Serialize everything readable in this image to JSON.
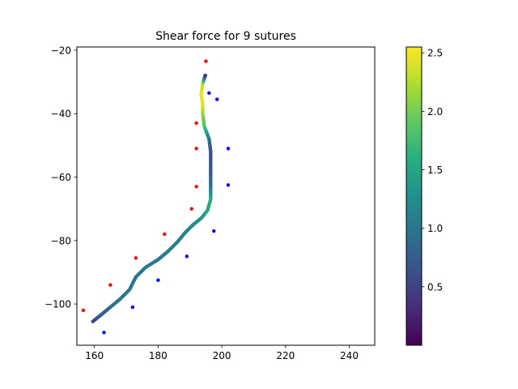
{
  "chart_data": {
    "type": "scatter",
    "title": "Shear force for 9 sutures",
    "xlabel": "",
    "ylabel": "",
    "xlim": [
      154.5,
      248
    ],
    "ylim": [
      -113,
      -19
    ],
    "x_ticks": [
      160,
      180,
      200,
      220,
      240
    ],
    "y_ticks": [
      -20,
      -40,
      -60,
      -80,
      -100
    ],
    "x_tick_labels": [
      "160",
      "180",
      "200",
      "220",
      "240"
    ],
    "y_tick_labels": [
      "−20",
      "−40",
      "−60",
      "−80",
      "−100"
    ],
    "grid": false,
    "colormap": "viridis",
    "colorbar": {
      "min": 0,
      "max": 2.55,
      "ticks": [
        0.5,
        1.0,
        1.5,
        2.0,
        2.5
      ],
      "tick_labels": [
        "0.5",
        "1.0",
        "1.5",
        "2.0",
        "2.5"
      ]
    },
    "path": {
      "points": [
        [
          159.5,
          -105.5
        ],
        [
          162,
          -103.5
        ],
        [
          165,
          -101
        ],
        [
          168,
          -98.5
        ],
        [
          171,
          -95.5
        ],
        [
          173,
          -91.5
        ],
        [
          176,
          -88.5
        ],
        [
          180,
          -86
        ],
        [
          183,
          -83.5
        ],
        [
          186,
          -80.5
        ],
        [
          188.5,
          -77.5
        ],
        [
          191,
          -75
        ],
        [
          193.5,
          -73
        ],
        [
          195.5,
          -70.5
        ],
        [
          196.5,
          -67
        ],
        [
          196.5,
          -62
        ],
        [
          196.5,
          -57
        ],
        [
          196.5,
          -52
        ],
        [
          196,
          -48
        ],
        [
          194.5,
          -44
        ],
        [
          194,
          -40
        ],
        [
          194,
          -37
        ],
        [
          193.5,
          -34
        ],
        [
          194,
          -30.5
        ],
        [
          194.8,
          -28
        ]
      ],
      "force": [
        0.5,
        0.7,
        0.9,
        1.0,
        1.05,
        1.0,
        1.05,
        1.0,
        1.05,
        1.1,
        1.15,
        1.2,
        1.3,
        1.5,
        1.6,
        0.9,
        0.7,
        0.6,
        0.9,
        1.8,
        2.1,
        2.4,
        2.5,
        2.3,
        0.5
      ]
    },
    "series": [
      {
        "color": "#ff0000",
        "points": [
          [
            156.5,
            -102
          ],
          [
            165,
            -94
          ],
          [
            173,
            -85.5
          ],
          [
            182,
            -78
          ],
          [
            190.5,
            -70
          ],
          [
            192,
            -63
          ],
          [
            192,
            -51
          ],
          [
            192,
            -43
          ],
          [
            195,
            -23.5
          ]
        ]
      },
      {
        "color": "#0000ff",
        "points": [
          [
            163,
            -109
          ],
          [
            172,
            -101
          ],
          [
            180,
            -92.5
          ],
          [
            189,
            -85
          ],
          [
            197.5,
            -77
          ],
          [
            202,
            -62.5
          ],
          [
            202,
            -51
          ],
          [
            198.5,
            -35.5
          ],
          [
            196,
            -33.5
          ]
        ]
      }
    ]
  }
}
